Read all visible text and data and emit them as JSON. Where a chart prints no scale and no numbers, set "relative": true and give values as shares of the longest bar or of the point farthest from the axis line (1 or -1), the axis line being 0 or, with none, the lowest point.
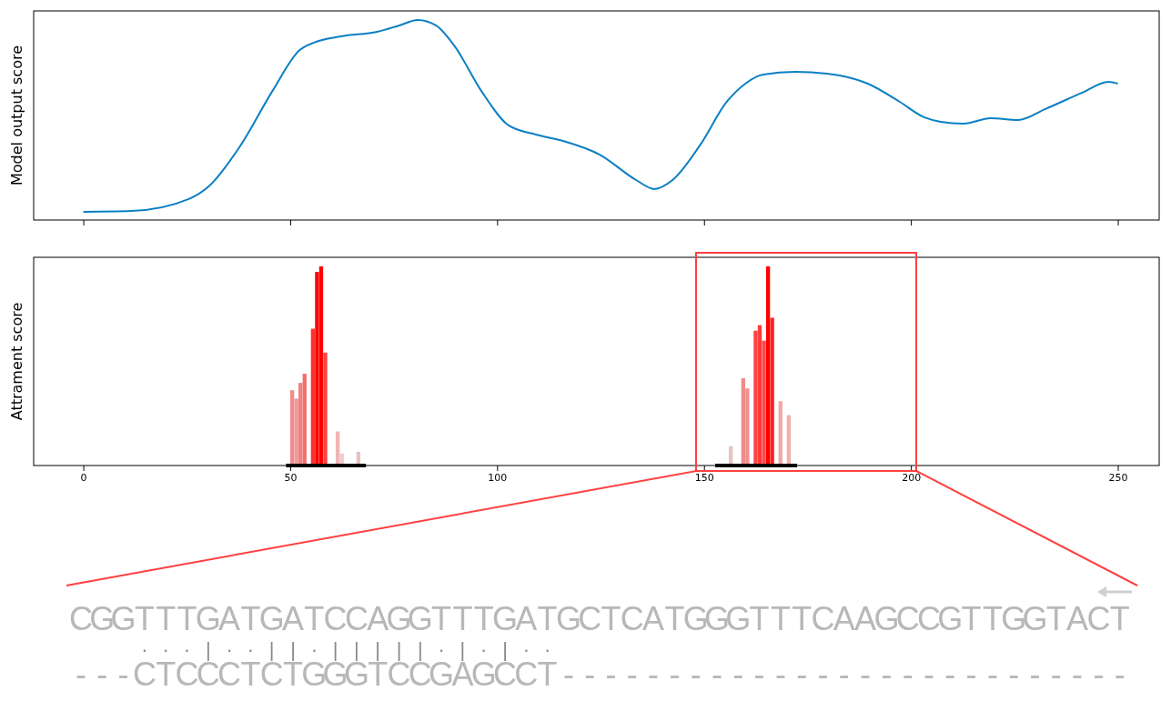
{
  "chart_data": [
    {
      "type": "line",
      "ylabel": "Model output score",
      "relative": true,
      "xlim": [
        -12,
        260
      ],
      "xticks": [
        0,
        50,
        100,
        150,
        200,
        250
      ],
      "tick_labels": false,
      "x": [
        0,
        11.6,
        25.5,
        30.3,
        38,
        45.7,
        52.3,
        55.6,
        62.2,
        71,
        76.4,
        80.8,
        85.2,
        89.6,
        96.2,
        102.8,
        109.4,
        116,
        124.8,
        133.6,
        138,
        142.4,
        149,
        155.5,
        160,
        164.3,
        172,
        179.7,
        189.6,
        197.3,
        202.8,
        207.2,
        212.7,
        219.3,
        225.9,
        232.5,
        241.3,
        247.8,
        250
      ],
      "series": [
        {
          "color": "#0a7fc4",
          "values": [
            0.041,
            0.045,
            0.105,
            0.168,
            0.373,
            0.645,
            0.85,
            0.886,
            0.918,
            0.941,
            0.973,
            1,
            0.973,
            0.873,
            0.645,
            0.473,
            0.427,
            0.395,
            0.327,
            0.2,
            0.155,
            0.2,
            0.373,
            0.591,
            0.682,
            0.727,
            0.741,
            0.732,
            0.682,
            0.591,
            0.518,
            0.491,
            0.482,
            0.509,
            0.5,
            0.555,
            0.636,
            0.691,
            0.682
          ]
        }
      ]
    },
    {
      "type": "bar",
      "ylabel": "Attrament score",
      "relative": true,
      "xlim": [
        -12,
        260
      ],
      "xticks": [
        0,
        50,
        100,
        150,
        200,
        250
      ],
      "tick_labels": "x",
      "x": [
        50.5,
        51.5,
        52.5,
        53.5,
        55.5,
        56.5,
        57.5,
        58.5,
        61.5,
        62.5,
        66.5,
        156.5,
        159.5,
        160.5,
        162.5,
        163.5,
        164.5,
        165.5,
        166.5,
        168.5,
        170.5
      ],
      "values": [
        0.378,
        0.336,
        0.415,
        0.461,
        0.687,
        0.972,
        1,
        0.567,
        0.171,
        0.06,
        0.069,
        0.097,
        0.438,
        0.387,
        0.677,
        0.705,
        0.627,
        1,
        0.742,
        0.323,
        0.253
      ],
      "colors": [
        "#f08c8c",
        "#f09a9a",
        "#f08080",
        "#f07070",
        "#ff3030",
        "#ff0000",
        "#ff0000",
        "#ff4040",
        "#f0b4b4",
        "#f0c8c8",
        "#e8c0c0",
        "#e8c4c4",
        "#f08a8a",
        "#f09090",
        "#ff4040",
        "#ff3a3a",
        "#ff4a4a",
        "#ff0000",
        "#ff2020",
        "#f0a8a8",
        "#f0b0b0"
      ],
      "series": [
        {
          "type": "line",
          "color": "#000000",
          "x": [
            49,
            68.3
          ],
          "values": [
            0,
            0
          ]
        },
        {
          "type": "line",
          "color": "#000000",
          "x": [
            152.7,
            172.5
          ],
          "values": [
            0,
            0
          ]
        }
      ],
      "annotations": [
        "CGGTTTGATGATCCAGGTTTGATGCTCATGGGTTTCAAGCCGTTGGTACT",
        "   ···|··||·|||||·|·|··",
        "---CTCCCTCTGGGTCCGAGCCT---------------------------"
      ]
    }
  ]
}
